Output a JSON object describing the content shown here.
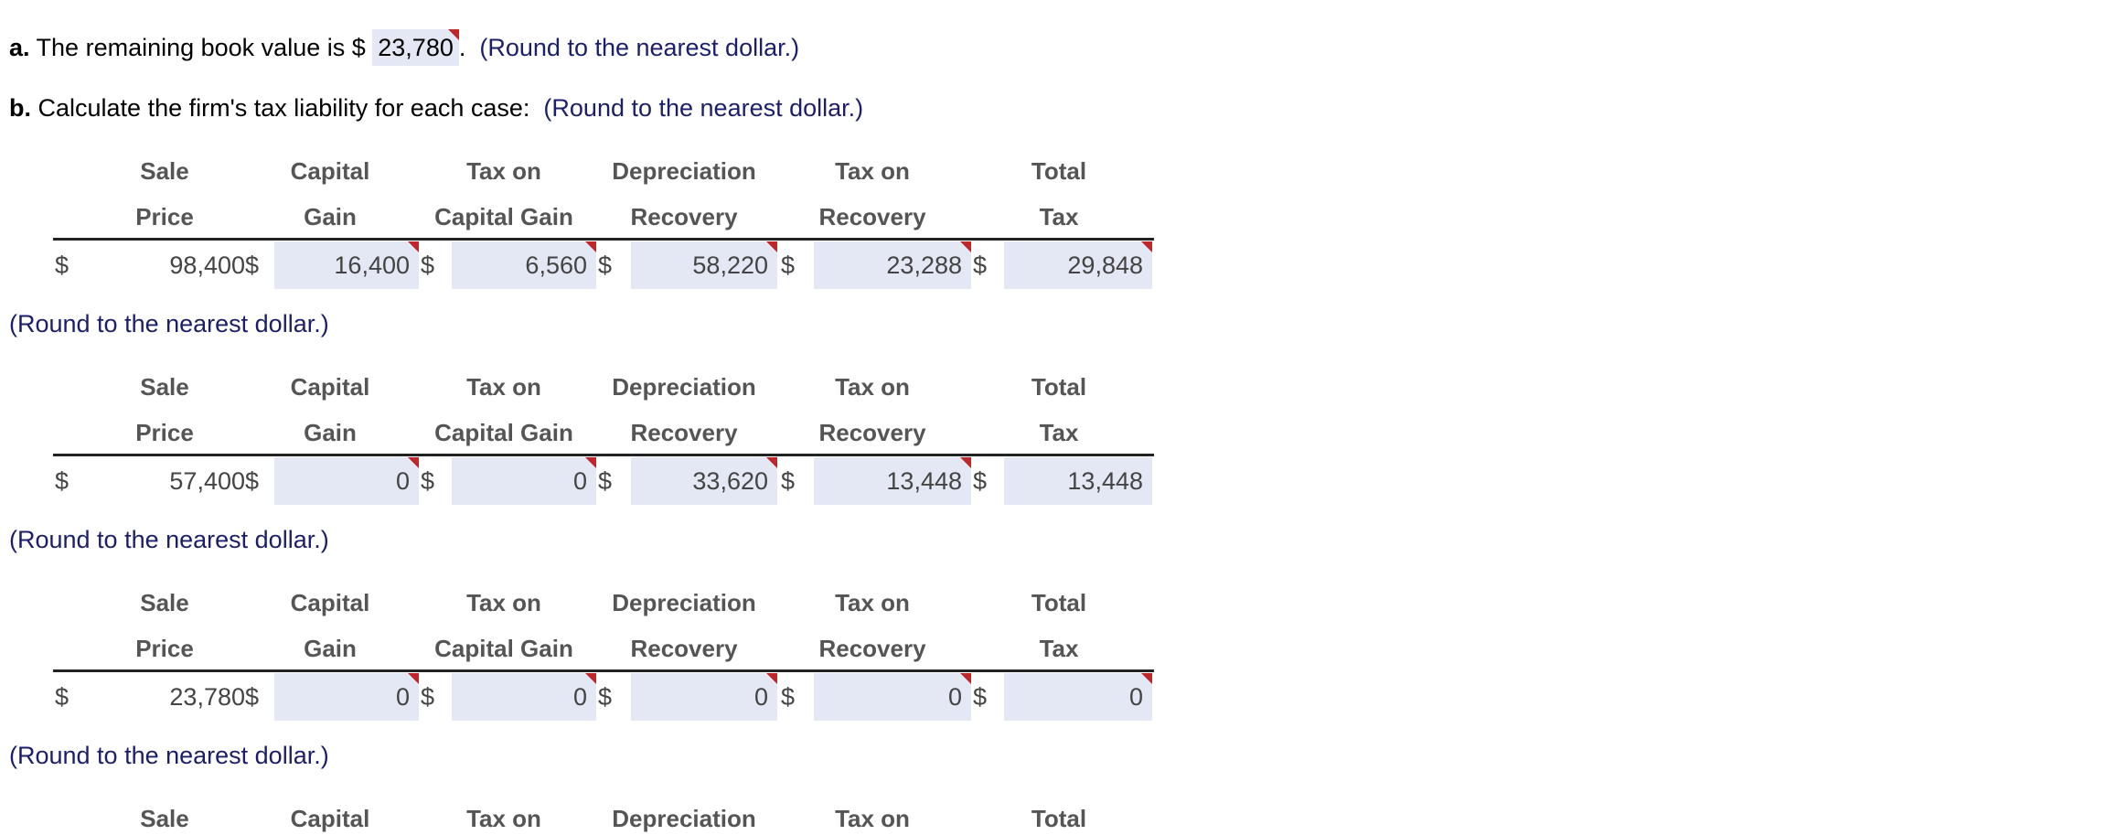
{
  "part_a": {
    "label": "a.",
    "text": "The remaining book value is $",
    "answer": "23,780",
    "period": ".",
    "hint": "(Round to the nearest dollar.)"
  },
  "part_b": {
    "label": "b.",
    "text": "Calculate the firm's tax liability for each case:",
    "hint": "(Round to the nearest dollar.)"
  },
  "round_hint": "(Round to the nearest dollar.)",
  "headers": {
    "sale_1": "Sale",
    "sale_2": "Price",
    "cap_1": "Capital",
    "cap_2": "Gain",
    "tcg_1": "Tax on",
    "tcg_2": "Capital Gain",
    "dep_1": "Depreciation",
    "dep_2": "Recovery",
    "tr_1": "Tax on",
    "tr_2": "Recovery",
    "tot_1": "Total",
    "tot_2": "Tax"
  },
  "currency": "$",
  "cases": [
    {
      "sale_price": "98,400",
      "capital_gain": "16,400",
      "tax_capital_gain": "6,560",
      "depreciation_recovery": "58,220",
      "tax_recovery": "23,288",
      "total_tax": "29,848"
    },
    {
      "sale_price": "57,400",
      "capital_gain": "0",
      "tax_capital_gain": "0",
      "depreciation_recovery": "33,620",
      "tax_recovery": "13,448",
      "total_tax": "13,448"
    },
    {
      "sale_price": "23,780",
      "capital_gain": "0",
      "tax_capital_gain": "0",
      "depreciation_recovery": "0",
      "tax_recovery": "0",
      "total_tax": "0"
    }
  ],
  "colors": {
    "input_bg": "#e4e8f4",
    "flag": "#c0272d",
    "hint": "#1b1f6b"
  }
}
